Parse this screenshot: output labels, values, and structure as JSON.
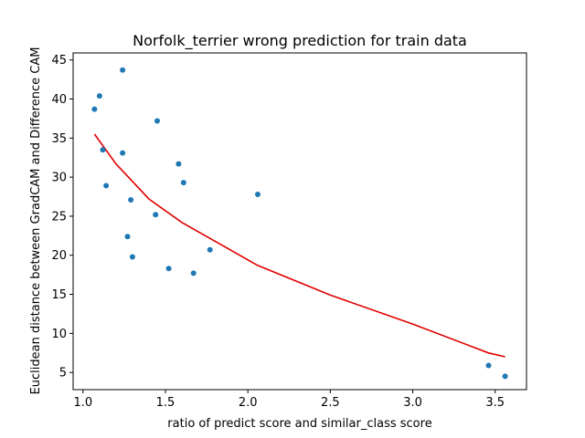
{
  "chart_data": {
    "type": "scatter",
    "title": "Norfolk_terrier wrong prediction for train data",
    "xlabel": "ratio of predict score and similar_class score",
    "ylabel": "Euclidean distance between GradCAM and Difference CAM",
    "xlim": [
      0.94,
      3.69
    ],
    "ylim": [
      2.8,
      45.9
    ],
    "xticks": [
      1.0,
      1.5,
      2.0,
      2.5,
      3.0,
      3.5
    ],
    "xtick_labels": [
      "1.0",
      "1.5",
      "2.0",
      "2.5",
      "3.0",
      "3.5"
    ],
    "yticks": [
      5,
      10,
      15,
      20,
      25,
      30,
      35,
      40,
      45
    ],
    "ytick_labels": [
      "5",
      "10",
      "15",
      "20",
      "25",
      "30",
      "35",
      "40",
      "45"
    ],
    "grid": false,
    "legend": null,
    "colors": {
      "points": "#1f77b4",
      "fit_line": "#e00000"
    },
    "series": [
      {
        "kind": "scatter",
        "x": [
          1.07,
          1.1,
          1.12,
          1.14,
          1.24,
          1.24,
          1.27,
          1.29,
          1.3,
          1.44,
          1.45,
          1.52,
          1.58,
          1.61,
          1.67,
          1.77,
          2.06,
          3.46,
          3.56
        ],
        "y": [
          38.7,
          40.4,
          33.5,
          28.9,
          43.7,
          33.1,
          22.4,
          27.1,
          19.8,
          25.2,
          37.2,
          18.3,
          31.7,
          29.3,
          17.7,
          20.7,
          27.8,
          5.9,
          4.5
        ]
      },
      {
        "kind": "line",
        "x": [
          1.07,
          1.2,
          1.4,
          1.6,
          1.8,
          2.06,
          2.5,
          3.0,
          3.46,
          3.56
        ],
        "y": [
          35.5,
          31.7,
          27.2,
          24.2,
          21.8,
          18.7,
          14.9,
          11.2,
          7.5,
          7.0
        ]
      }
    ]
  }
}
